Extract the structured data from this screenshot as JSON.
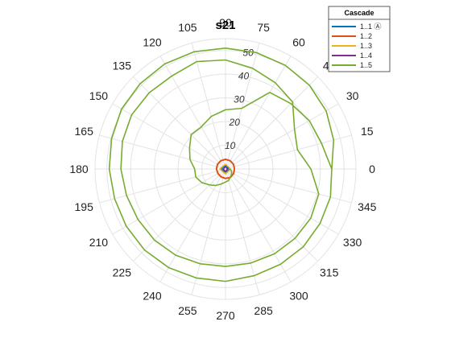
{
  "chart_data": {
    "type": "polar-line",
    "title": "s21",
    "theta_unit": "degrees",
    "theta_ticks": [
      0,
      15,
      30,
      45,
      60,
      75,
      90,
      105,
      120,
      135,
      150,
      165,
      180,
      195,
      210,
      225,
      240,
      255,
      270,
      285,
      300,
      315,
      330,
      345
    ],
    "rlim": [
      0,
      55
    ],
    "r_ticks": [
      0,
      10,
      20,
      30,
      40,
      50
    ],
    "grid": true,
    "legend": {
      "title": "Cascade",
      "placement": "top-right",
      "entries": [
        "1..1 Ⓐ",
        "1..2",
        "1..3",
        "1..4",
        "1..5"
      ]
    },
    "series": [
      {
        "name": "1..1 Ⓐ",
        "color": "#0072BD",
        "points": [
          [
            0,
            1.5
          ],
          [
            60,
            1.2
          ],
          [
            120,
            1.4
          ],
          [
            180,
            1.6
          ],
          [
            240,
            1.3
          ],
          [
            300,
            1.5
          ],
          [
            360,
            1.5
          ]
        ]
      },
      {
        "name": "1..2",
        "color": "#D95319",
        "points": [
          [
            0,
            3.8
          ],
          [
            30,
            3.9
          ],
          [
            60,
            4.0
          ],
          [
            90,
            4.1
          ],
          [
            120,
            4.0
          ],
          [
            150,
            3.9
          ],
          [
            180,
            3.8
          ],
          [
            210,
            3.7
          ],
          [
            240,
            3.8
          ],
          [
            270,
            4.0
          ],
          [
            300,
            4.1
          ],
          [
            330,
            3.9
          ],
          [
            360,
            3.8
          ]
        ]
      },
      {
        "name": "1..3",
        "color": "#EDB120",
        "points": [
          [
            0,
            2.2
          ],
          [
            90,
            2.0
          ],
          [
            180,
            2.4
          ],
          [
            270,
            2.1
          ],
          [
            360,
            2.2
          ]
        ]
      },
      {
        "name": "1..4",
        "color": "#7E2F8E",
        "points": [
          [
            0,
            0.8
          ],
          [
            90,
            1.0
          ],
          [
            180,
            0.9
          ],
          [
            270,
            1.1
          ],
          [
            360,
            0.8
          ]
        ]
      },
      {
        "name": "1..5",
        "color": "#77AC30",
        "spiral": [
          [
            0,
            44.8
          ],
          [
            15,
            47.2
          ],
          [
            30,
            49.0
          ],
          [
            45,
            50.0
          ],
          [
            60,
            50.5
          ],
          [
            75,
            50.8
          ],
          [
            90,
            51.0
          ],
          [
            105,
            51.2
          ],
          [
            120,
            51.2
          ],
          [
            135,
            50.9
          ],
          [
            150,
            50.6
          ],
          [
            165,
            49.7
          ],
          [
            180,
            49.0
          ],
          [
            195,
            48.4
          ],
          [
            210,
            48.3
          ],
          [
            225,
            48.3
          ],
          [
            240,
            48.0
          ],
          [
            255,
            47.6
          ],
          [
            270,
            47.4
          ],
          [
            285,
            46.6
          ],
          [
            300,
            46.4
          ],
          [
            315,
            46.4
          ],
          [
            330,
            46.0
          ],
          [
            345,
            45.8
          ],
          [
            360,
            44.8
          ],
          [
            375,
            41.9
          ],
          [
            390,
            40.8
          ],
          [
            405,
            39.0
          ],
          [
            420,
            37.3
          ],
          [
            435,
            26.5
          ],
          [
            450,
            25.0
          ],
          [
            465,
            23.0
          ],
          [
            480,
            20.5
          ],
          [
            495,
            20.5
          ],
          [
            510,
            17.5
          ],
          [
            525,
            15.5
          ],
          [
            540,
            13.0
          ],
          [
            555,
            13.0
          ],
          [
            570,
            11.5
          ],
          [
            585,
            9.5
          ],
          [
            600,
            8.0
          ],
          [
            615,
            6.5
          ],
          [
            630,
            5.5
          ],
          [
            645,
            5.0
          ],
          [
            660,
            4.0
          ],
          [
            675,
            3.5
          ],
          [
            690,
            3.0
          ],
          [
            705,
            2.5
          ],
          [
            720,
            2.0
          ]
        ],
        "inner": [
          [
            0,
            36.0
          ],
          [
            15,
            31.4
          ],
          [
            30,
            33.6
          ],
          [
            45,
            40.0
          ],
          [
            60,
            42.0
          ],
          [
            75,
            44.0
          ],
          [
            90,
            46.0
          ],
          [
            105,
            46.9
          ],
          [
            120,
            45.3
          ],
          [
            135,
            45.5
          ],
          [
            150,
            45.7
          ],
          [
            165,
            45.0
          ],
          [
            180,
            44.1
          ],
          [
            195,
            43.2
          ],
          [
            210,
            42.6
          ],
          [
            225,
            42.4
          ],
          [
            240,
            42.0
          ],
          [
            255,
            41.4
          ],
          [
            270,
            41.1
          ],
          [
            285,
            41.1
          ],
          [
            300,
            41.3
          ],
          [
            315,
            41.4
          ],
          [
            330,
            41.5
          ],
          [
            345,
            40.7
          ],
          [
            360,
            36.0
          ]
        ]
      }
    ]
  }
}
